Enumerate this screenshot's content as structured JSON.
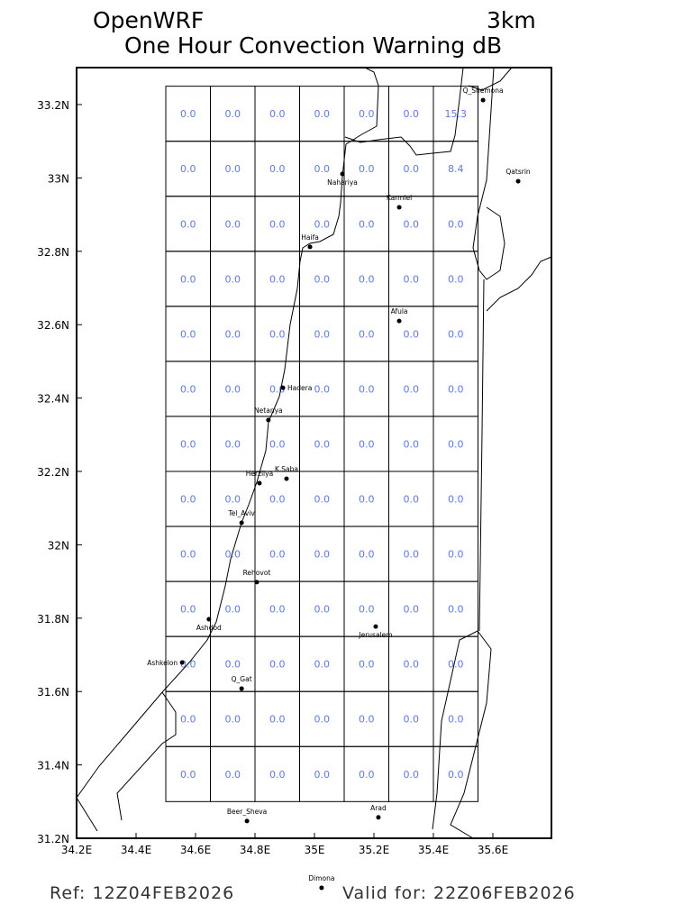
{
  "header": {
    "title": "OpenWRF",
    "resolution": "3km",
    "subtitle": "One Hour Convection Warning dB"
  },
  "footer": {
    "ref": "Ref: 12Z04FEB2026",
    "valid": "Valid for: 22Z06FEB2026"
  },
  "map": {
    "lon_range": [
      34.185,
      35.8
    ],
    "lat_range": [
      31.2,
      33.3
    ],
    "x_ticks": [
      {
        "value": 34.2,
        "label": "34.2E"
      },
      {
        "value": 34.4,
        "label": "34.4E"
      },
      {
        "value": 34.6,
        "label": "34.6E"
      },
      {
        "value": 34.8,
        "label": "34.8E"
      },
      {
        "value": 35.0,
        "label": "35E"
      },
      {
        "value": 35.2,
        "label": "35.2E"
      },
      {
        "value": 35.4,
        "label": "35.4E"
      },
      {
        "value": 35.6,
        "label": "35.6E"
      }
    ],
    "y_ticks": [
      {
        "value": 33.2,
        "label": "33.2N"
      },
      {
        "value": 33.0,
        "label": "33N"
      },
      {
        "value": 32.8,
        "label": "32.8N"
      },
      {
        "value": 32.6,
        "label": "32.6N"
      },
      {
        "value": 32.4,
        "label": "32.4N"
      },
      {
        "value": 32.2,
        "label": "32.2N"
      },
      {
        "value": 32.0,
        "label": "32N"
      },
      {
        "value": 31.8,
        "label": "31.8N"
      },
      {
        "value": 31.6,
        "label": "31.6N"
      },
      {
        "value": 31.4,
        "label": "31.4N"
      },
      {
        "value": 31.2,
        "label": "31.2N"
      }
    ],
    "grid": {
      "lon_start": 34.5,
      "lat_top": 33.25,
      "cell_deg": 0.15,
      "value_color": "#5a78ff",
      "values": [
        [
          "0.0",
          "0.0",
          "0.0",
          "0.0",
          "0.0",
          "0.0",
          "15.3"
        ],
        [
          "0.0",
          "0.0",
          "0.0",
          "0.0",
          "0.0",
          "0.0",
          "8.4"
        ],
        [
          "0.0",
          "0.0",
          "0.0",
          "0.0",
          "0.0",
          "0.0",
          "0.0"
        ],
        [
          "0.0",
          "0.0",
          "0.0",
          "0.0",
          "0.0",
          "0.0",
          "0.0"
        ],
        [
          "0.0",
          "0.0",
          "0.0",
          "0.0",
          "0.0",
          "0.0",
          "0.0"
        ],
        [
          "0.0",
          "0.0",
          "0.0",
          "0.0",
          "0.0",
          "0.0",
          "0.0"
        ],
        [
          "0.0",
          "0.0",
          "0.0",
          "0.0",
          "0.0",
          "0.0",
          "0.0"
        ],
        [
          "0.0",
          "0.0",
          "0.0",
          "0.0",
          "0.0",
          "0.0",
          "0.0"
        ],
        [
          "0.0",
          "0.0",
          "0.0",
          "0.0",
          "0.0",
          "0.0",
          "0.0"
        ],
        [
          "0.0",
          "0.0",
          "0.0",
          "0.0",
          "0.0",
          "0.0",
          "0.0"
        ],
        [
          "0.0",
          "0.0",
          "0.0",
          "0.0",
          "0.0",
          "0.0",
          "0.0"
        ],
        [
          "0.0",
          "0.0",
          "0.0",
          "0.0",
          "0.0",
          "0.0",
          "0.0"
        ],
        [
          "0.0",
          "0.0",
          "0.0",
          "0.0",
          "0.0",
          "0.0",
          "0.0"
        ]
      ]
    },
    "cities": [
      {
        "name": "Q_Shemona",
        "lon": 35.567,
        "lat": 33.212
      },
      {
        "name": "Qatsrin",
        "lon": 35.685,
        "lat": 32.991
      },
      {
        "name": "Nahariya",
        "lon": 35.094,
        "lat": 33.011
      },
      {
        "name": "Karmiel",
        "lon": 35.285,
        "lat": 32.92
      },
      {
        "name": "Haifa",
        "lon": 34.985,
        "lat": 32.812
      },
      {
        "name": "Afula",
        "lon": 35.285,
        "lat": 32.61
      },
      {
        "name": "Hadera",
        "lon": 34.894,
        "lat": 32.428
      },
      {
        "name": "Netanya",
        "lon": 34.845,
        "lat": 32.34
      },
      {
        "name": "Herzliya",
        "lon": 34.815,
        "lat": 32.168
      },
      {
        "name": "K.Saba",
        "lon": 34.906,
        "lat": 32.18
      },
      {
        "name": "Tel_Aviv",
        "lon": 34.755,
        "lat": 32.06
      },
      {
        "name": "Rehovot",
        "lon": 34.806,
        "lat": 31.898
      },
      {
        "name": "Ashdod",
        "lon": 34.645,
        "lat": 31.797
      },
      {
        "name": "Jerusalem",
        "lon": 35.206,
        "lat": 31.777
      },
      {
        "name": "Ashkelon",
        "lon": 34.555,
        "lat": 31.679
      },
      {
        "name": "Q_Gat",
        "lon": 34.755,
        "lat": 31.608
      },
      {
        "name": "Beer_Sheva",
        "lon": 34.773,
        "lat": 31.247
      },
      {
        "name": "Arad",
        "lon": 35.215,
        "lat": 31.257
      },
      {
        "name": "Dimona",
        "lon": 35.024,
        "lat": 31.065
      }
    ]
  }
}
